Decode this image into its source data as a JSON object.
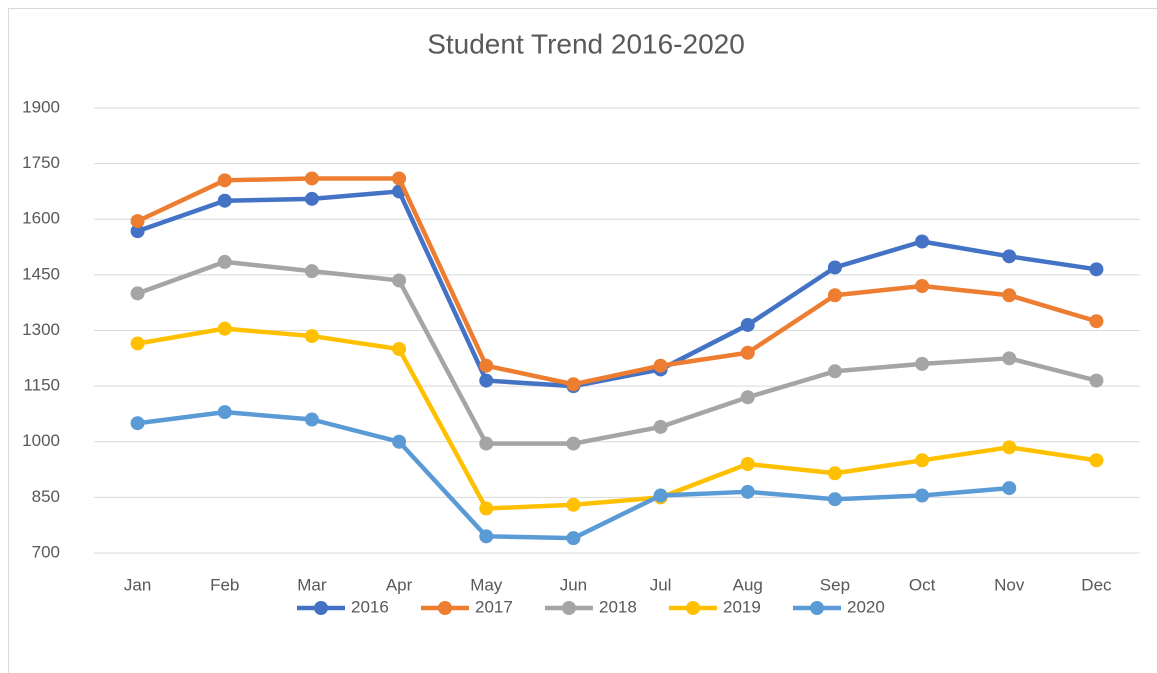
{
  "chart_data": {
    "type": "line",
    "title": "Student Trend 2016-2020",
    "categories": [
      "Jan",
      "Feb",
      "Mar",
      "Apr",
      "May",
      "Jun",
      "Jul",
      "Aug",
      "Sep",
      "Oct",
      "Nov",
      "Dec"
    ],
    "series": [
      {
        "name": "2016",
        "color": "#4472c4",
        "values": [
          1568,
          1650,
          1655,
          1675,
          1165,
          1150,
          1195,
          1315,
          1470,
          1540,
          1500,
          1465
        ]
      },
      {
        "name": "2017",
        "color": "#ed7d31",
        "values": [
          1595,
          1705,
          1710,
          1710,
          1205,
          1155,
          1205,
          1240,
          1395,
          1420,
          1395,
          1325
        ]
      },
      {
        "name": "2018",
        "color": "#a5a5a5",
        "values": [
          1400,
          1485,
          1460,
          1435,
          995,
          995,
          1040,
          1120,
          1190,
          1210,
          1225,
          1165
        ]
      },
      {
        "name": "2019",
        "color": "#ffc000",
        "values": [
          1265,
          1305,
          1285,
          1250,
          820,
          830,
          850,
          940,
          915,
          950,
          985,
          950
        ]
      },
      {
        "name": "2020",
        "color": "#5b9bd5",
        "values": [
          1050,
          1080,
          1060,
          1000,
          745,
          740,
          855,
          865,
          845,
          855,
          875,
          null
        ]
      }
    ],
    "ylim": [
      700,
      1900
    ],
    "yticks": [
      700,
      850,
      1000,
      1150,
      1300,
      1450,
      1600,
      1750,
      1900
    ],
    "grid": true,
    "legend": "bottom"
  }
}
